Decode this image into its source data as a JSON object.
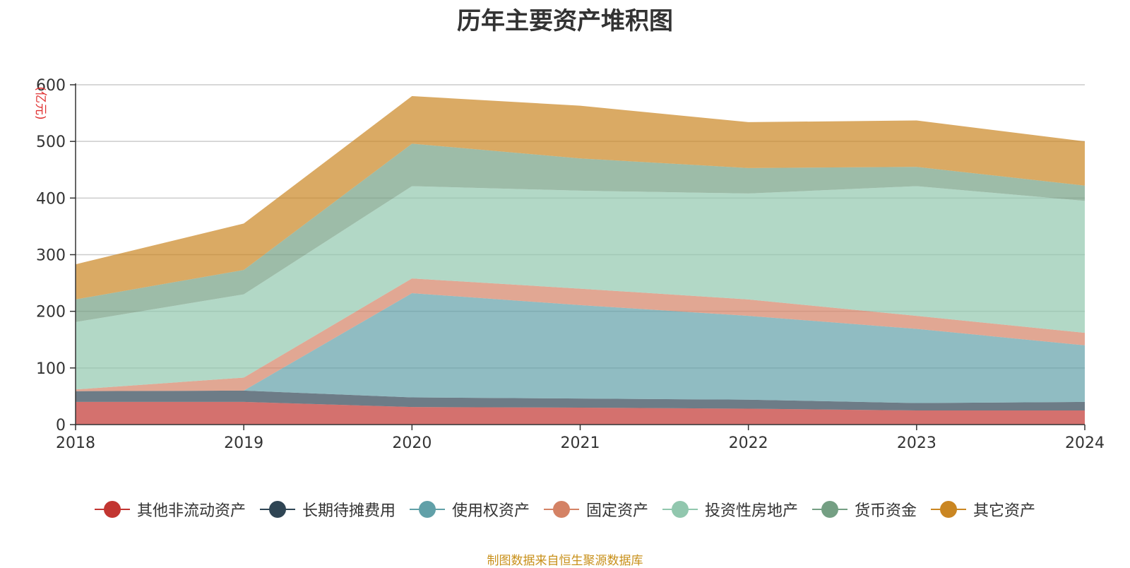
{
  "chart_data": {
    "type": "area",
    "stacked": true,
    "title": "历年主要资产堆积图",
    "unit_label": "(亿元)",
    "categories": [
      "2018",
      "2019",
      "2020",
      "2021",
      "2022",
      "2023",
      "2024"
    ],
    "ylim": [
      0,
      600
    ],
    "yticks": [
      0,
      100,
      200,
      300,
      400,
      500,
      600
    ],
    "grid": true,
    "legend_position": "bottom",
    "series": [
      {
        "name": "其他非流动资产",
        "color": "#c23531",
        "values": [
          40,
          40,
          31,
          30,
          28,
          25,
          25
        ]
      },
      {
        "name": "长期待摊费用",
        "color": "#2f4554",
        "values": [
          19,
          20,
          17,
          16,
          16,
          13,
          15
        ]
      },
      {
        "name": "使用权资产",
        "color": "#61a0a8",
        "values": [
          0,
          0,
          184,
          165,
          148,
          131,
          100
        ]
      },
      {
        "name": "固定资产",
        "color": "#d48265",
        "values": [
          3,
          23,
          26,
          29,
          29,
          23,
          22
        ]
      },
      {
        "name": "投资性房地产",
        "color": "#91c7ae",
        "values": [
          119,
          147,
          163,
          173,
          187,
          229,
          233
        ]
      },
      {
        "name": "货币资金",
        "color": "#749f83",
        "values": [
          40,
          43,
          75,
          57,
          45,
          34,
          27
        ]
      },
      {
        "name": "其它资产",
        "color": "#ca8622",
        "values": [
          62,
          82,
          84,
          93,
          81,
          82,
          78
        ]
      }
    ]
  },
  "source_note": "制图数据来自恒生聚源数据库"
}
